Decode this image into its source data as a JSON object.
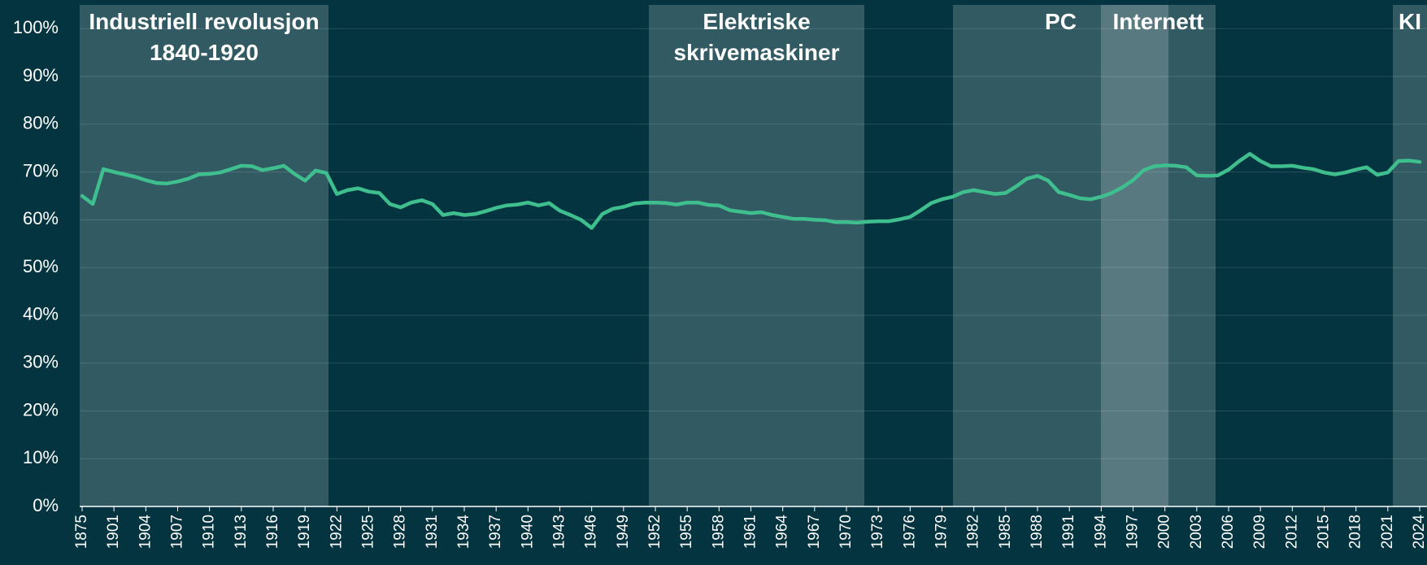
{
  "chart_data": {
    "type": "line",
    "band_labels": [
      "Industriell revolusjon 1840-1920",
      "Elektriske skrivemaskiner",
      "PC",
      "Internett",
      "KI"
    ],
    "categories": [
      "1875",
      null,
      null,
      "1901",
      null,
      null,
      "1904",
      null,
      null,
      "1907",
      null,
      null,
      "1910",
      null,
      null,
      "1913",
      null,
      null,
      "1916",
      null,
      null,
      "1919",
      null,
      null,
      "1922",
      null,
      null,
      "1925",
      null,
      null,
      "1928",
      null,
      null,
      "1931",
      null,
      null,
      "1934",
      null,
      null,
      "1937",
      null,
      null,
      "1940",
      null,
      null,
      "1943",
      null,
      null,
      "1946",
      null,
      null,
      "1949",
      null,
      null,
      "1952",
      null,
      null,
      "1955",
      null,
      null,
      "1958",
      null,
      null,
      "1961",
      null,
      null,
      "1964",
      null,
      null,
      "1967",
      null,
      null,
      "1970",
      null,
      null,
      "1973",
      null,
      null,
      "1976",
      null,
      null,
      "1979",
      null,
      null,
      "1982",
      null,
      null,
      "1985",
      null,
      null,
      "1988",
      null,
      null,
      "1991",
      null,
      null,
      "1994",
      null,
      null,
      "1997",
      null,
      null,
      "2000",
      null,
      null,
      "2003",
      null,
      null,
      "2006",
      null,
      null,
      "2009",
      null,
      null,
      "2012",
      null,
      null,
      "2015",
      null,
      null,
      "2018",
      null,
      null,
      "2021",
      null,
      null,
      "2024"
    ],
    "values": [
      65.0,
      63.3,
      70.6,
      70.0,
      69.5,
      69.0,
      68.3,
      67.7,
      67.6,
      68.0,
      68.6,
      69.5,
      69.6,
      69.9,
      70.6,
      71.3,
      71.2,
      70.4,
      70.8,
      71.3,
      69.6,
      68.2,
      70.3,
      69.8,
      65.4,
      66.2,
      66.6,
      65.9,
      65.6,
      63.3,
      62.6,
      63.6,
      64.1,
      63.3,
      61.0,
      61.4,
      61.0,
      61.2,
      61.8,
      62.5,
      63.0,
      63.2,
      63.6,
      63.0,
      63.5,
      61.9,
      61.0,
      60.0,
      58.3,
      61.2,
      62.3,
      62.7,
      63.4,
      63.6,
      63.6,
      63.5,
      63.2,
      63.6,
      63.6,
      63.1,
      63.0,
      62.0,
      61.7,
      61.4,
      61.6,
      61.0,
      60.6,
      60.2,
      60.2,
      60.0,
      59.9,
      59.5,
      59.5,
      59.4,
      59.6,
      59.7,
      59.7,
      60.1,
      60.6,
      62.0,
      63.5,
      64.3,
      64.8,
      65.8,
      66.2,
      65.8,
      65.4,
      65.6,
      67.0,
      68.6,
      69.2,
      68.2,
      65.8,
      65.2,
      64.5,
      64.3,
      64.8,
      65.6,
      66.8,
      68.3,
      70.4,
      71.2,
      71.4,
      71.3,
      71.0,
      69.3,
      69.2,
      69.3,
      70.5,
      72.3,
      73.8,
      72.3,
      71.2,
      71.2,
      71.3,
      70.9,
      70.6,
      69.9,
      69.5,
      69.9,
      70.5,
      71.0,
      69.4,
      69.9,
      72.3,
      72.4,
      72.1
    ],
    "color": "#3fbf8e",
    "ylim": [
      0,
      106
    ],
    "yticks": [
      {
        "value": 0,
        "label": "0%"
      },
      {
        "value": 10,
        "label": "10%"
      },
      {
        "value": 20,
        "label": "20%"
      },
      {
        "value": 30,
        "label": "30%"
      },
      {
        "value": 40,
        "label": "40%"
      },
      {
        "value": 50,
        "label": "50%"
      },
      {
        "value": 60,
        "label": "60%"
      },
      {
        "value": 70,
        "label": "70%"
      },
      {
        "value": 80,
        "label": "80%"
      },
      {
        "value": 90,
        "label": "90%"
      },
      {
        "value": 100,
        "label": "100%"
      }
    ],
    "grid": true
  }
}
